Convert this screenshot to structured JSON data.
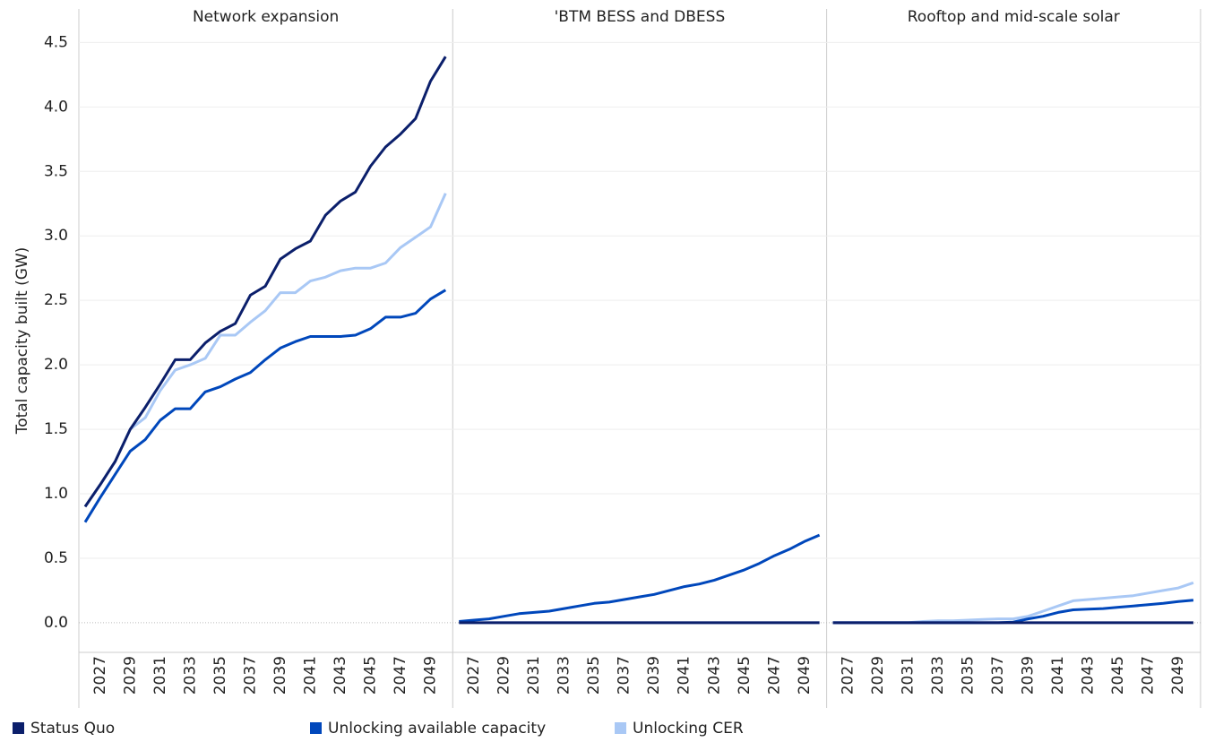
{
  "chart_data": [
    {
      "type": "line",
      "title": "Network expansion",
      "ylabel": "Total capacity built (GW)",
      "categories": [
        null,
        "2027",
        null,
        "2029",
        null,
        "2031",
        null,
        "2033",
        null,
        "2035",
        null,
        "2037",
        null,
        "2039",
        null,
        "2041",
        null,
        "2043",
        null,
        "2045",
        null,
        "2047",
        null,
        "2049",
        null
      ],
      "ylim": [
        -0.23,
        4.76
      ],
      "yticks": [
        {
          "value": 0,
          "label": "0.0"
        },
        0.5,
        {
          "value": 1,
          "label": "1.0"
        },
        1.5,
        {
          "value": 2,
          "label": "2.0"
        },
        2.5,
        {
          "value": 3,
          "label": "3.0"
        },
        3.5,
        {
          "value": 4,
          "label": "4.0"
        },
        4.5
      ],
      "grid": true,
      "series": [
        {
          "name": "Status Quo",
          "color": "#0b1f6b",
          "values": [
            0.9,
            1.07,
            1.25,
            1.5,
            1.67,
            1.85,
            2.04,
            2.04,
            2.17,
            2.26,
            2.32,
            2.54,
            2.61,
            2.82,
            2.9,
            2.96,
            3.16,
            3.27,
            3.34,
            3.54,
            3.69,
            3.79,
            3.91,
            4.2,
            4.39
          ]
        },
        {
          "name": "Unlocking available capacity",
          "color": "#0047bb",
          "values": [
            0.78,
            0.97,
            1.15,
            1.33,
            1.42,
            1.57,
            1.66,
            1.66,
            1.79,
            1.83,
            1.89,
            1.94,
            2.04,
            2.13,
            2.18,
            2.22,
            2.22,
            2.22,
            2.23,
            2.28,
            2.37,
            2.37,
            2.4,
            2.51,
            2.58
          ]
        },
        {
          "name": "Unlocking CER",
          "color": "#a9c8f5",
          "values": [
            0.9,
            1.07,
            1.25,
            1.5,
            1.59,
            1.8,
            1.96,
            2.0,
            2.05,
            2.23,
            2.23,
            2.33,
            2.42,
            2.56,
            2.56,
            2.65,
            2.68,
            2.73,
            2.75,
            2.75,
            2.79,
            2.91,
            2.99,
            3.07,
            3.33
          ]
        }
      ]
    },
    {
      "type": "line",
      "title": "'BTM BESS and DBESS",
      "categories": [
        null,
        "2027",
        null,
        "2029",
        null,
        "2031",
        null,
        "2033",
        null,
        "2035",
        null,
        "2037",
        null,
        "2039",
        null,
        "2041",
        null,
        "2043",
        null,
        "2045",
        null,
        "2047",
        null,
        "2049",
        null
      ],
      "series": [
        {
          "color": "#0b1f6b",
          "values": [
            0,
            0,
            0,
            0,
            0,
            0,
            0,
            0,
            0,
            0,
            0,
            0,
            0,
            0,
            0,
            0,
            0,
            0,
            0,
            0,
            0,
            0,
            0,
            0,
            0
          ]
        },
        {
          "color": "#0047bb",
          "values": [
            0.01,
            0.02,
            0.03,
            0.05,
            0.07,
            0.08,
            0.09,
            0.11,
            0.13,
            0.15,
            0.16,
            0.18,
            0.2,
            0.22,
            0.25,
            0.28,
            0.3,
            0.33,
            0.37,
            0.41,
            0.46,
            0.52,
            0.57,
            0.63,
            0.68
          ]
        },
        {
          "color": "#a9c8f5",
          "values": [
            0,
            0,
            0,
            0,
            0,
            0,
            0,
            0,
            0,
            0,
            0,
            0,
            0,
            0,
            0,
            0,
            0,
            0,
            0,
            0,
            0,
            0,
            0,
            0,
            0
          ]
        }
      ]
    },
    {
      "type": "line",
      "title": "Rooftop and mid-scale solar",
      "categories": [
        null,
        "2027",
        null,
        "2029",
        null,
        "2031",
        null,
        "2033",
        null,
        "2035",
        null,
        "2037",
        null,
        "2039",
        null,
        "2041",
        null,
        "2043",
        null,
        "2045",
        null,
        "2047",
        null,
        "2049",
        null
      ],
      "series": [
        {
          "color": "#0b1f6b",
          "values": [
            0,
            0,
            0,
            0,
            0,
            0,
            0,
            0,
            0,
            0,
            0,
            0,
            0,
            0,
            0,
            0,
            0,
            0,
            0,
            0,
            0,
            0,
            0,
            0,
            0
          ]
        },
        {
          "color": "#0047bb",
          "values": [
            0,
            0,
            0,
            0,
            0,
            0,
            0,
            0,
            0,
            0,
            0,
            0,
            0.005,
            0.03,
            0.05,
            0.08,
            0.1,
            0.105,
            0.11,
            0.12,
            0.13,
            0.14,
            0.15,
            0.165,
            0.175
          ]
        },
        {
          "color": "#a9c8f5",
          "values": [
            0,
            0,
            0,
            0,
            0,
            0,
            0.01,
            0.015,
            0.015,
            0.02,
            0.025,
            0.03,
            0.03,
            0.05,
            0.09,
            0.13,
            0.17,
            0.18,
            0.19,
            0.2,
            0.21,
            0.23,
            0.25,
            0.27,
            0.31
          ]
        }
      ]
    }
  ]
}
